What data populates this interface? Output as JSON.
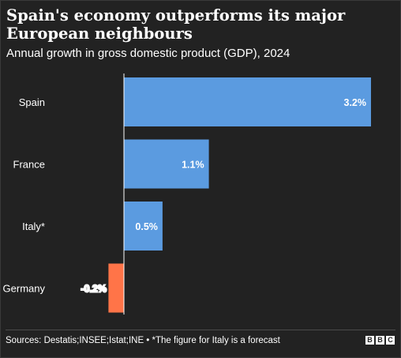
{
  "title": "Spain's economy outperforms its major European neighbours",
  "subtitle": "Annual growth in gross domestic product (GDP), 2024",
  "source": "Sources: Destatis;INSEE;Istat;INE • *The figure for Italy is a forecast",
  "logo": [
    "B",
    "B",
    "C"
  ],
  "colors": {
    "positive": "#5b9be0",
    "negative": "#ff7448",
    "background": "#222222",
    "text": "#ffffff"
  },
  "chart_data": {
    "type": "bar",
    "orientation": "horizontal",
    "categories": [
      "Spain",
      "France",
      "Italy*",
      "Germany"
    ],
    "values": [
      3.2,
      1.1,
      0.5,
      -0.2
    ],
    "value_labels": [
      "3.2%",
      "1.1%",
      "0.5%",
      "-0.2%"
    ],
    "xlim": [
      -0.2,
      3.2
    ],
    "grid": false,
    "legend": "none"
  }
}
